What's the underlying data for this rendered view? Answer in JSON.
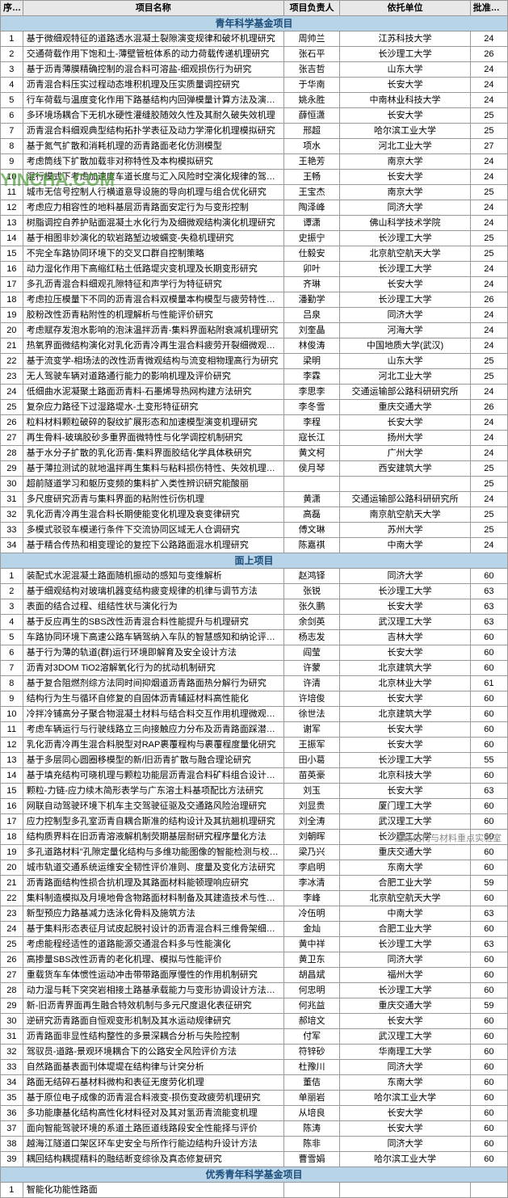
{
  "headers": {
    "seq": "序号",
    "name": "项目名称",
    "person": "项目负责人",
    "unit": "依托单位",
    "amount": "批准金额"
  },
  "watermark": "YINCHA.COM",
  "footer": "道路结构与材料重点实验室",
  "sections": [
    {
      "title": "青年科学基金项目",
      "rows": [
        {
          "s": 1,
          "n": "基于微细观特征的道路透水混凝土裂隙演变规律和破坏机理研究",
          "p": "周帅兰",
          "u": "江苏科技大学",
          "a": 24
        },
        {
          "s": 2,
          "n": "交通荷载作用下饱和土-薄壁管桩体系的动力荷载传递机理研究",
          "p": "张石平",
          "u": "长沙理工大学",
          "a": 26
        },
        {
          "s": 3,
          "n": "基于沥青薄膜精确控制的混合料可溶盐-细观损伤行为研究",
          "p": "张吉哲",
          "u": "山东大学",
          "a": 24
        },
        {
          "s": 4,
          "n": "沥青混合料压实过程动态堆积机理及压实质量调控研究",
          "p": "于华南",
          "u": "长安大学",
          "a": 24
        },
        {
          "s": 5,
          "n": "行车荷载与温度变化作用下路基结构内回弹模量计算方法及演变机理",
          "p": "姚永胜",
          "u": "中南林业科技大学",
          "a": 24
        },
        {
          "s": 6,
          "n": "多环境场耦合下无机水硬性灌缝胶随效久性及其耐久破失效机理",
          "p": "薛恒潇",
          "u": "长安大学",
          "a": 25
        },
        {
          "s": 7,
          "n": "沥青混合料细观典型结构拓扑学表征及动力学滞化机理模拟研究",
          "p": "邢超",
          "u": "哈尔滨工业大学",
          "a": 25
        },
        {
          "s": 8,
          "n": "基于氮气扩散和消耗机理的沥青路面老化仿测模型",
          "p": "项水",
          "u": "河北工业大学",
          "a": 27
        },
        {
          "s": 9,
          "n": "考虑筒线下扩散加载非对称特性及本构模拟研究",
          "p": "王艳芳",
          "u": "南京大学",
          "a": 24
        },
        {
          "s": 10,
          "n": "混行模式下考虑加速度车道长度与汇入风险时空演化规律的驾驶员自主汇入策略研究",
          "p": "王畅",
          "u": "长安大学",
          "a": 24
        },
        {
          "s": 11,
          "n": "城市无信号控制人行横道意导设施的导向机理与组合优化研究",
          "p": "王宝杰",
          "u": "南京大学",
          "a": 25
        },
        {
          "s": 12,
          "n": "考虑应力相容性的地料基层沥青路面安定行为与变形控制",
          "p": "陶泽峰",
          "u": "同济大学",
          "a": 24
        },
        {
          "s": 13,
          "n": "树脂调控自养护贴面混凝土水化行为及细微观结构演化机理研究",
          "p": "谭潇",
          "u": "佛山科学技术学院",
          "a": 24
        },
        {
          "s": 14,
          "n": "基于相图非妙演化的软岩路堑边坡蠕变-失稳机理研究",
          "p": "史振宁",
          "u": "长沙理工大学",
          "a": 25
        },
        {
          "s": 15,
          "n": "不完全车路协同环境下的交叉口群自控制策略",
          "p": "仕毅安",
          "u": "北京航空航天大学",
          "a": 25
        },
        {
          "s": 16,
          "n": "动力湿化作用下高缩红粘土低路堤灾变机理及长期变形研究",
          "p": "卯叶",
          "u": "长沙理工大学",
          "a": 24
        },
        {
          "s": 17,
          "n": "多孔沥青混合料细观孔隙特征和声学行为特征研究",
          "p": "齐琳",
          "u": "长安大学",
          "a": 24
        },
        {
          "s": 18,
          "n": "考虑拉压模量下不同的沥青混合料双模量本构模型与疲劳特性研究",
          "p": "潘勤学",
          "u": "长沙理工大学",
          "a": 26
        },
        {
          "s": 19,
          "n": "胶粉改性沥青粘附性的机理解析与性能评价研究",
          "p": "吕泉",
          "u": "同济大学",
          "a": 24
        },
        {
          "s": 20,
          "n": "考虑赋存发泡水影响的泡沫温拌沥青-集料界面粘附衰减机理研究",
          "p": "刘奎晶",
          "u": "河海大学",
          "a": 24
        },
        {
          "s": 21,
          "n": "热氧界面微结构演化对乳化沥青冷再生混合料疲劳开裂细微观机理研究",
          "p": "林俊涛",
          "u": "中国地质大学(武汉)",
          "a": 24
        },
        {
          "s": 22,
          "n": "基于流变学-相场法的改性沥青微观结构与流变相物理高行为研究",
          "p": "梁明",
          "u": "山东大学",
          "a": 25
        },
        {
          "s": 23,
          "n": "无人驾驶车辆对道路通行能力的影响机理及评价研究",
          "p": "李霖",
          "u": "河北工业大学",
          "a": 25
        },
        {
          "s": 24,
          "n": "低细曲水泥凝聚土路面沥青料-石墨烯导热网构建方法研究",
          "p": "李思李",
          "u": "交通运输部公路科研研究所",
          "a": 24
        },
        {
          "s": 25,
          "n": "复杂应力路径下过湿路堤水-土变形特征研究",
          "p": "李冬雪",
          "u": "重庆交通大学",
          "a": 26
        },
        {
          "s": 26,
          "n": "粒料材料颗粒破碎的裂纹扩展形态和加速模型演变机理研究",
          "p": "李程",
          "u": "长安大学",
          "a": 24
        },
        {
          "s": 27,
          "n": "再生骨料-玻璃胶砂多重界面微特性与化学调控机制研究",
          "p": "寇长江",
          "u": "扬州大学",
          "a": 24
        },
        {
          "s": 28,
          "n": "基于水分子扩散的乳化沥青-集料界面胶结化学具体秩研究",
          "p": "黄文柯",
          "u": "广州大学",
          "a": 24
        },
        {
          "s": 29,
          "n": "基于薄拉测试的就地温拌再生集料与粘料损伤特性、失效机理及增强研究",
          "p": "侯月琴",
          "u": "西安建筑大学",
          "a": 25
        },
        {
          "s": 30,
          "n": "超前隧道学习和躯历变频的集料扩入类性辨识研究能酸丽",
          "p": "",
          "u": "",
          "a": 25
        },
        {
          "s": 31,
          "n": "多尺度研究沥青与集料界面的粘附性衍伤机理",
          "p": "黄潇",
          "u": "交通运输部公路科研研究所",
          "a": 24
        },
        {
          "s": 32,
          "n": "乳化沥青冷再生混合料长期使能变化机理及衰变律研究",
          "p": "高磊",
          "u": "南京航空航天大学",
          "a": 25
        },
        {
          "s": 33,
          "n": "多模式驳驳车模递行条件下交流协同区域无人仓调研究",
          "p": "傅文琳",
          "u": "苏州大学",
          "a": 25
        },
        {
          "s": 34,
          "n": "基于精合传热和相变理论的复控下公路路面混水机理研究",
          "p": "陈嘉祺",
          "u": "中南大学",
          "a": 24
        }
      ]
    },
    {
      "title": "面上项目",
      "rows": [
        {
          "s": 1,
          "n": "装配式水泥混凝土路面随机振动的感知与变维解析",
          "p": "赵鸿铎",
          "u": "同济大学",
          "a": 60
        },
        {
          "s": 2,
          "n": "基于细观结构对玻璃机器变结构疲变规律的机律与调节方法",
          "p": "张锐",
          "u": "长沙理工大学",
          "a": 63
        },
        {
          "s": 3,
          "n": "表面的结合过程、组结性状与演化行为",
          "p": "张久鹏",
          "u": "长安大学",
          "a": 63
        },
        {
          "s": 4,
          "n": "基于反应再生的SBS改性沥青混合料性能提升与机理研究",
          "p": "余剑英",
          "u": "武汉理工大学",
          "a": 63
        },
        {
          "s": 5,
          "n": "车路协同环境下高速公路车辆驾纳入车队的智慧感知和纳论评价模型",
          "p": "杨志发",
          "u": "吉林大学",
          "a": 60
        },
        {
          "s": 6,
          "n": "基于行为薄的轨道(群)运行环境即解育及安全设计方法",
          "p": "阎莹",
          "u": "长安大学",
          "a": 60
        },
        {
          "s": 7,
          "n": "沥青对3DOM TiO2溶解氧化行为的扰动机制研究",
          "p": "许蒙",
          "u": "北京建筑大学",
          "a": 60
        },
        {
          "s": 8,
          "n": "基于复合阻燃剂综方法同时间抑烟道沥青路面热分解行为研究",
          "p": "许清",
          "u": "北京林业大学",
          "a": 61
        },
        {
          "s": 9,
          "n": "结构行为生与循环自修复的自固体沥青辅延材料高性能化",
          "p": "许培俊",
          "u": "长安大学",
          "a": 60
        },
        {
          "s": 10,
          "n": "冷拌冷铺高分子聚合物混凝土材料与结合料交互作用机理微观分析",
          "p": "徐世法",
          "u": "北京建筑大学",
          "a": 60
        },
        {
          "s": 11,
          "n": "考虑车辆运行与行驶线路立三向接触应力分布及沥青路面踩潜初裂先研究",
          "p": "谢军",
          "u": "长安大学",
          "a": 60
        },
        {
          "s": 12,
          "n": "乳化沥青冷再生混合料脱型对RAP裹覆程构与裹覆程度量化研究",
          "p": "王振军",
          "u": "长安大学",
          "a": 60
        },
        {
          "s": 13,
          "n": "基于多层同心圆圈移模型的新/旧沥青扩散与融合理论研究",
          "p": "田小葛",
          "u": "长沙理工大学",
          "a": 55
        },
        {
          "s": 14,
          "n": "基于填充结构可晓机理与颗粒功能层沥青混合料矿料组合设计理方法",
          "p": "苗英豪",
          "u": "北京科技大学",
          "a": 60
        },
        {
          "s": 15,
          "n": "颗粒-力链-应力续木简形表学与广东溶土料基项配比方法研究",
          "p": "刘玉",
          "u": "长安大学",
          "a": 63
        },
        {
          "s": 16,
          "n": "网联自动驾驶环境下机车主交驾驶征驱及交通路风险治理研究",
          "p": "刘显贵",
          "u": "厦门理工大学",
          "a": 60
        },
        {
          "s": 17,
          "n": "应力控制型多孔室沥青自耦合斯准的结构设计及其抗翘机理研究",
          "p": "刘全涛",
          "u": "武汉理工大学",
          "a": 60
        },
        {
          "s": 18,
          "n": "结构质界料在旧沥青溶液解机制荧期基层耐研究程序量化方法",
          "p": "刘朝晖",
          "u": "长沙理工大学",
          "a": 60
        },
        {
          "s": 19,
          "n": "多孔道路材料\"孔隙定量化结构与多维功能图像的智能检测与校正方法研究",
          "p": "梁乃兴",
          "u": "重庆交通大学",
          "a": 60
        },
        {
          "s": 20,
          "n": "城市轨道交通系统运维安全韧性评价准则、度量及变化方法研究",
          "p": "李启明",
          "u": "东南大学",
          "a": 60
        },
        {
          "s": 21,
          "n": "沥青路面结构性损合抗机理及其路面材料能顿理响应研究",
          "p": "李冰清",
          "u": "合肥工业大学",
          "a": 59
        },
        {
          "s": 22,
          "n": "集料制造模拟及月境地骨含物路面材料制备及其建造技术与性调控",
          "p": "李峰",
          "u": "北京航空航天大学",
          "a": 60
        },
        {
          "s": 23,
          "n": "新型预应力路基减力迭泳化骨料及施筑方法",
          "p": "冷伍明",
          "u": "中南大学",
          "a": 63
        },
        {
          "s": 24,
          "n": "基于集料形态表征月试皮起脱衬设计的沥青混合料三维骨架细观力学特性演化机理研究",
          "p": "金灿",
          "u": "合肥工业大学",
          "a": 60
        },
        {
          "s": 25,
          "n": "考虑能程经适性的道路能源交通混合料多与性能演化",
          "p": "黄中祥",
          "u": "长沙理工大学",
          "a": 63
        },
        {
          "s": 26,
          "n": "高掺量SBS改性沥青的老化机理、模拟与性能评价",
          "p": "黄卫东",
          "u": "同济大学",
          "a": 60
        },
        {
          "s": 27,
          "n": "重载货车车体惯性运动冲击带带路面厚慢性的作用机制研究",
          "p": "胡昌斌",
          "u": "福州大学",
          "a": 60
        },
        {
          "s": 28,
          "n": "动力湿与耗下突突岩相接土路基承载能力与变形协调设计方法研究",
          "p": "何忠明",
          "u": "长沙理工大学",
          "a": 60
        },
        {
          "s": 29,
          "n": "新-旧沥青界面再生融合特效机制与多元尺度退化表征研究",
          "p": "何兆益",
          "u": "重庆交通大学",
          "a": 59
        },
        {
          "s": 30,
          "n": "逆研究沥青路面自恒观变形机制及其水运动规律研究",
          "p": "郝培文",
          "u": "长安大学",
          "a": 60
        },
        {
          "s": 31,
          "n": "沥青路面非显性结构整性的多景深耦合分析与失险控制",
          "p": "付军",
          "u": "武汉理工大学",
          "a": 60
        },
        {
          "s": 32,
          "n": "驾驭员-道路-景观环境耦合下的公路安全风险评价方法",
          "p": "符锌砂",
          "u": "华南理工大学",
          "a": 60
        },
        {
          "s": 33,
          "n": "自然路面基表面刊体堤堤在结构律与计突分析",
          "p": "杜豫川",
          "u": "同济大学",
          "a": 60
        },
        {
          "s": 34,
          "n": "路面无结碎石基材料微构和表征无度劳化机理",
          "p": "董佶",
          "u": "东南大学",
          "a": 60
        },
        {
          "s": 35,
          "n": "基于原位电子成像的沥青混合料液变-损伤变政疲劳机理研究",
          "p": "单丽岩",
          "u": "哈尔滨工业大学",
          "a": 60
        },
        {
          "s": 36,
          "n": "多功能康基化结构高性化材料径对及其对氢沥青流能变机理",
          "p": "从培良",
          "u": "长安大学",
          "a": 60
        },
        {
          "s": 37,
          "n": "面向智能驾驶环境的系道土路匝道线路段安全性能择与评价",
          "p": "陈涛",
          "u": "长安大学",
          "a": 60
        },
        {
          "s": 38,
          "n": "越海江隧道口架区环车史安全与所作行能边结构升设计方法",
          "p": "陈非",
          "u": "同济大学",
          "a": 60
        },
        {
          "s": 39,
          "n": "耦回结构耦提精料的融结断变综徐及真态修复研究",
          "p": "曹雪娟",
          "u": "哈尔滨工业大学",
          "a": 60
        }
      ]
    },
    {
      "title": "优秀青年科学基金项目",
      "rows": [
        {
          "s": 1,
          "n": "智能化功能性路面",
          "p": "",
          "u": "",
          "a": ""
        }
      ]
    }
  ]
}
